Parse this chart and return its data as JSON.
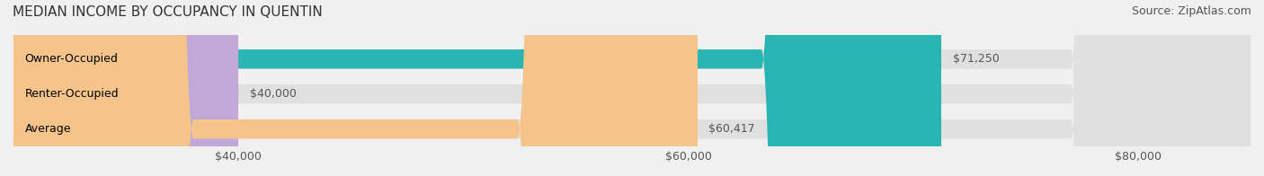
{
  "title": "MEDIAN INCOME BY OCCUPANCY IN QUENTIN",
  "source": "Source: ZipAtlas.com",
  "categories": [
    "Owner-Occupied",
    "Renter-Occupied",
    "Average"
  ],
  "values": [
    71250,
    40000,
    60417
  ],
  "bar_colors": [
    "#2ab5b5",
    "#c0a8d8",
    "#f5c48a"
  ],
  "bar_labels": [
    "$71,250",
    "$40,000",
    "$60,417"
  ],
  "xlim": [
    30000,
    85000
  ],
  "xticks": [
    40000,
    60000,
    80000
  ],
  "xticklabels": [
    "$40,000",
    "$60,000",
    "$80,000"
  ],
  "background_color": "#f0f0f0",
  "bar_background_color": "#e0e0e0",
  "title_fontsize": 11,
  "source_fontsize": 9,
  "label_fontsize": 9,
  "tick_fontsize": 9
}
